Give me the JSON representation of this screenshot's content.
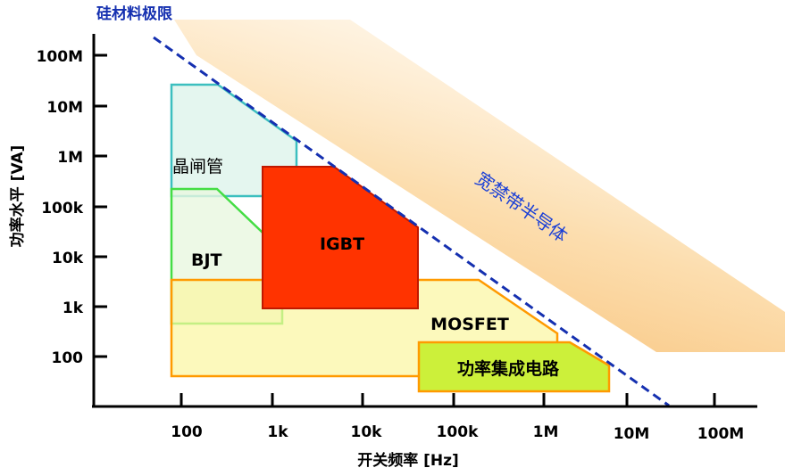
{
  "diagram": {
    "silicon_limit_label": "硅材料极限",
    "wide_bandgap_label": "宽禁带半导体",
    "y_axis_title": "功率水平 [VA]",
    "x_axis_title": "开关频率 [Hz]",
    "y_ticks": [
      "100M",
      "10M",
      "1M",
      "100k",
      "10k",
      "1k",
      "100"
    ],
    "x_ticks": [
      "100",
      "1k",
      "10k",
      "100k",
      "1M",
      "10M",
      "100M"
    ],
    "regions": {
      "thyristor": "晶闸管",
      "bjt": "BJT",
      "igbt": "IGBT",
      "mosfet": "MOSFET",
      "power_ic": "功率集成电路"
    },
    "colors": {
      "thyristor_border": "#3cbfbf",
      "bjt_border": "#44dd44",
      "igbt_fill": "#ff3300",
      "mosfet_border": "#ff9a00",
      "power_ic_fill": "#ccf03a",
      "limit_line": "#1530b0",
      "wide_band_gradient_start": "#f7b25a"
    }
  }
}
